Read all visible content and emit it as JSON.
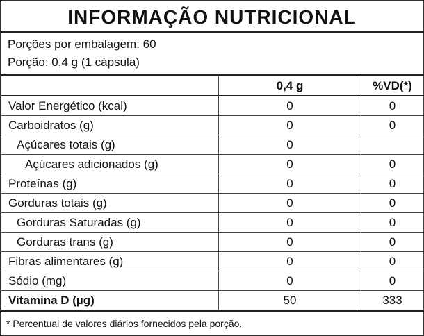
{
  "title": "INFORMAÇÃO NUTRICIONAL",
  "servings": [
    "Porções por embalagem: 60",
    "Porção: 0,4 g (1 cápsula)"
  ],
  "table": {
    "header": [
      "0,4 g",
      "%VD(*)"
    ],
    "rows": [
      [
        "Valor Energético (kcal)",
        "0",
        "0"
      ],
      [
        "Carboidratos (g)",
        "0",
        "0"
      ],
      [
        "Açúcares totais (g)",
        "0",
        null
      ],
      [
        "Açúcares adicionados (g)",
        "0",
        "0"
      ],
      [
        "Proteínas (g)",
        "0",
        "0"
      ],
      [
        "Gorduras totais (g)",
        "0",
        "0"
      ],
      [
        "Gorduras Saturadas (g)",
        "0",
        "0"
      ],
      [
        "Gorduras trans (g)",
        "0",
        "0"
      ],
      [
        "Fibras alimentares (g)",
        "0",
        "0"
      ],
      [
        "Sódio (mg)",
        "0",
        "0"
      ],
      [
        "Vitamina D (µg)",
        "50",
        "333"
      ]
    ]
  },
  "footnote": "* Percentual de valores diários fornecidos pela porção."
}
